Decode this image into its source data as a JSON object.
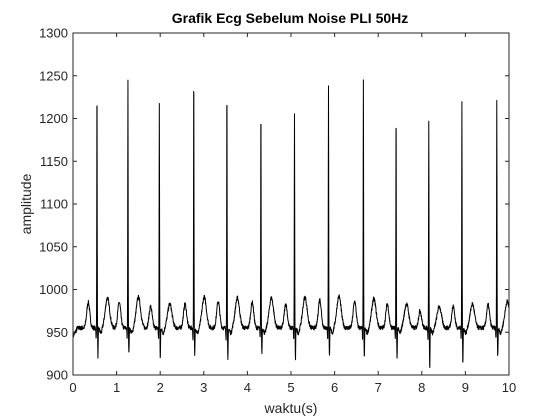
{
  "chart_data": {
    "type": "line",
    "title": "Grafik Ecg Sebelum Noise PLI 50Hz",
    "xlabel": "waktu(s)",
    "ylabel": "amplitude",
    "xlim": [
      0,
      10
    ],
    "ylim": [
      900,
      1300
    ],
    "xticks": [
      "0",
      "1",
      "2",
      "3",
      "4",
      "5",
      "6",
      "7",
      "8",
      "9",
      "10"
    ],
    "yticks": [
      "900",
      "950",
      "1000",
      "1050",
      "1100",
      "1150",
      "1200",
      "1250",
      "1300"
    ],
    "grid": false,
    "legend": "none",
    "series": [
      {
        "beats": [
          {
            "t": 0.55,
            "peak": 1244,
            "trough": 922,
            "p_height": 1000,
            "t_height": 1002
          },
          {
            "t": 1.26,
            "peak": 1243,
            "trough": 924,
            "p_height": 1000,
            "t_height": 1003
          },
          {
            "t": 1.98,
            "peak": 1219,
            "trough": 919,
            "p_height": 995,
            "t_height": 995
          },
          {
            "t": 2.77,
            "peak": 1259,
            "trough": 922,
            "p_height": 998,
            "t_height": 1003
          },
          {
            "t": 3.53,
            "peak": 1245,
            "trough": 916,
            "p_height": 1001,
            "t_height": 1002
          },
          {
            "t": 4.31,
            "peak": 1218,
            "trough": 925,
            "p_height": 1000,
            "t_height": 1002
          },
          {
            "t": 5.08,
            "peak": 1205,
            "trough": 917,
            "p_height": 998,
            "t_height": 1003
          },
          {
            "t": 5.86,
            "peak": 1237,
            "trough": 920,
            "p_height": 1003,
            "t_height": 1004
          },
          {
            "t": 6.66,
            "peak": 1243,
            "trough": 920,
            "p_height": 1001,
            "t_height": 1001
          },
          {
            "t": 7.41,
            "peak": 1212,
            "trough": 919,
            "p_height": 998,
            "t_height": 995
          },
          {
            "t": 8.16,
            "peak": 1199,
            "trough": 907,
            "p_height": 990,
            "t_height": 992
          },
          {
            "t": 8.92,
            "peak": 1219,
            "trough": 914,
            "p_height": 995,
            "t_height": 995
          },
          {
            "t": 9.72,
            "peak": 1220,
            "trough": 920,
            "p_height": 997,
            "t_height": 998
          }
        ],
        "baseline": 955,
        "start_value": 945,
        "end_value": 940
      }
    ]
  },
  "colors": {
    "line": "#000000",
    "axes": "#262626",
    "background": "#ffffff"
  }
}
